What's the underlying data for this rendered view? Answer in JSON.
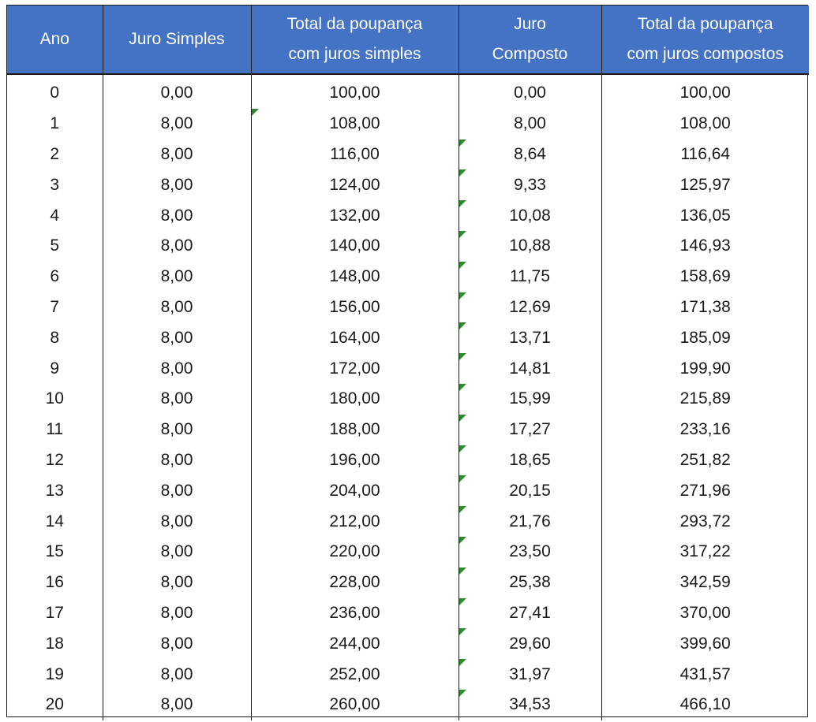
{
  "table": {
    "headers": [
      [
        "Ano"
      ],
      [
        "Juro Simples"
      ],
      [
        "Total da poupança",
        "com juros simples"
      ],
      [
        "Juro",
        "Composto"
      ],
      [
        "Total da poupança",
        "com juros compostos"
      ]
    ],
    "rows": [
      [
        "0",
        "0,00",
        "100,00",
        "0,00",
        "100,00"
      ],
      [
        "1",
        "8,00",
        "108,00",
        "8,00",
        "108,00"
      ],
      [
        "2",
        "8,00",
        "116,00",
        "8,64",
        "116,64"
      ],
      [
        "3",
        "8,00",
        "124,00",
        "9,33",
        "125,97"
      ],
      [
        "4",
        "8,00",
        "132,00",
        "10,08",
        "136,05"
      ],
      [
        "5",
        "8,00",
        "140,00",
        "10,88",
        "146,93"
      ],
      [
        "6",
        "8,00",
        "148,00",
        "11,75",
        "158,69"
      ],
      [
        "7",
        "8,00",
        "156,00",
        "12,69",
        "171,38"
      ],
      [
        "8",
        "8,00",
        "164,00",
        "13,71",
        "185,09"
      ],
      [
        "9",
        "8,00",
        "172,00",
        "14,81",
        "199,90"
      ],
      [
        "10",
        "8,00",
        "180,00",
        "15,99",
        "215,89"
      ],
      [
        "11",
        "8,00",
        "188,00",
        "17,27",
        "233,16"
      ],
      [
        "12",
        "8,00",
        "196,00",
        "18,65",
        "251,82"
      ],
      [
        "13",
        "8,00",
        "204,00",
        "20,15",
        "271,96"
      ],
      [
        "14",
        "8,00",
        "212,00",
        "21,76",
        "293,72"
      ],
      [
        "15",
        "8,00",
        "220,00",
        "23,50",
        "317,22"
      ],
      [
        "16",
        "8,00",
        "228,00",
        "25,38",
        "342,59"
      ],
      [
        "17",
        "8,00",
        "236,00",
        "27,41",
        "370,00"
      ],
      [
        "18",
        "8,00",
        "244,00",
        "29,60",
        "399,60"
      ],
      [
        "19",
        "8,00",
        "252,00",
        "31,97",
        "431,57"
      ],
      [
        "20",
        "8,00",
        "260,00",
        "34,53",
        "466,10"
      ]
    ],
    "error_flags": [
      {
        "row": 1,
        "col": 2
      },
      {
        "row": 2,
        "col": 3
      },
      {
        "row": 3,
        "col": 3
      },
      {
        "row": 4,
        "col": 3
      },
      {
        "row": 5,
        "col": 3
      },
      {
        "row": 6,
        "col": 3
      },
      {
        "row": 7,
        "col": 3
      },
      {
        "row": 8,
        "col": 3
      },
      {
        "row": 9,
        "col": 3
      },
      {
        "row": 10,
        "col": 3
      },
      {
        "row": 11,
        "col": 3
      },
      {
        "row": 12,
        "col": 3
      },
      {
        "row": 13,
        "col": 3
      },
      {
        "row": 14,
        "col": 3
      },
      {
        "row": 15,
        "col": 3
      },
      {
        "row": 16,
        "col": 3
      },
      {
        "row": 17,
        "col": 3
      },
      {
        "row": 18,
        "col": 3
      },
      {
        "row": 19,
        "col": 3
      },
      {
        "row": 20,
        "col": 3
      }
    ]
  },
  "colors": {
    "header_bg": "#4472c4",
    "header_text": "#ffffff",
    "error_flag": "#2e8b2e"
  }
}
